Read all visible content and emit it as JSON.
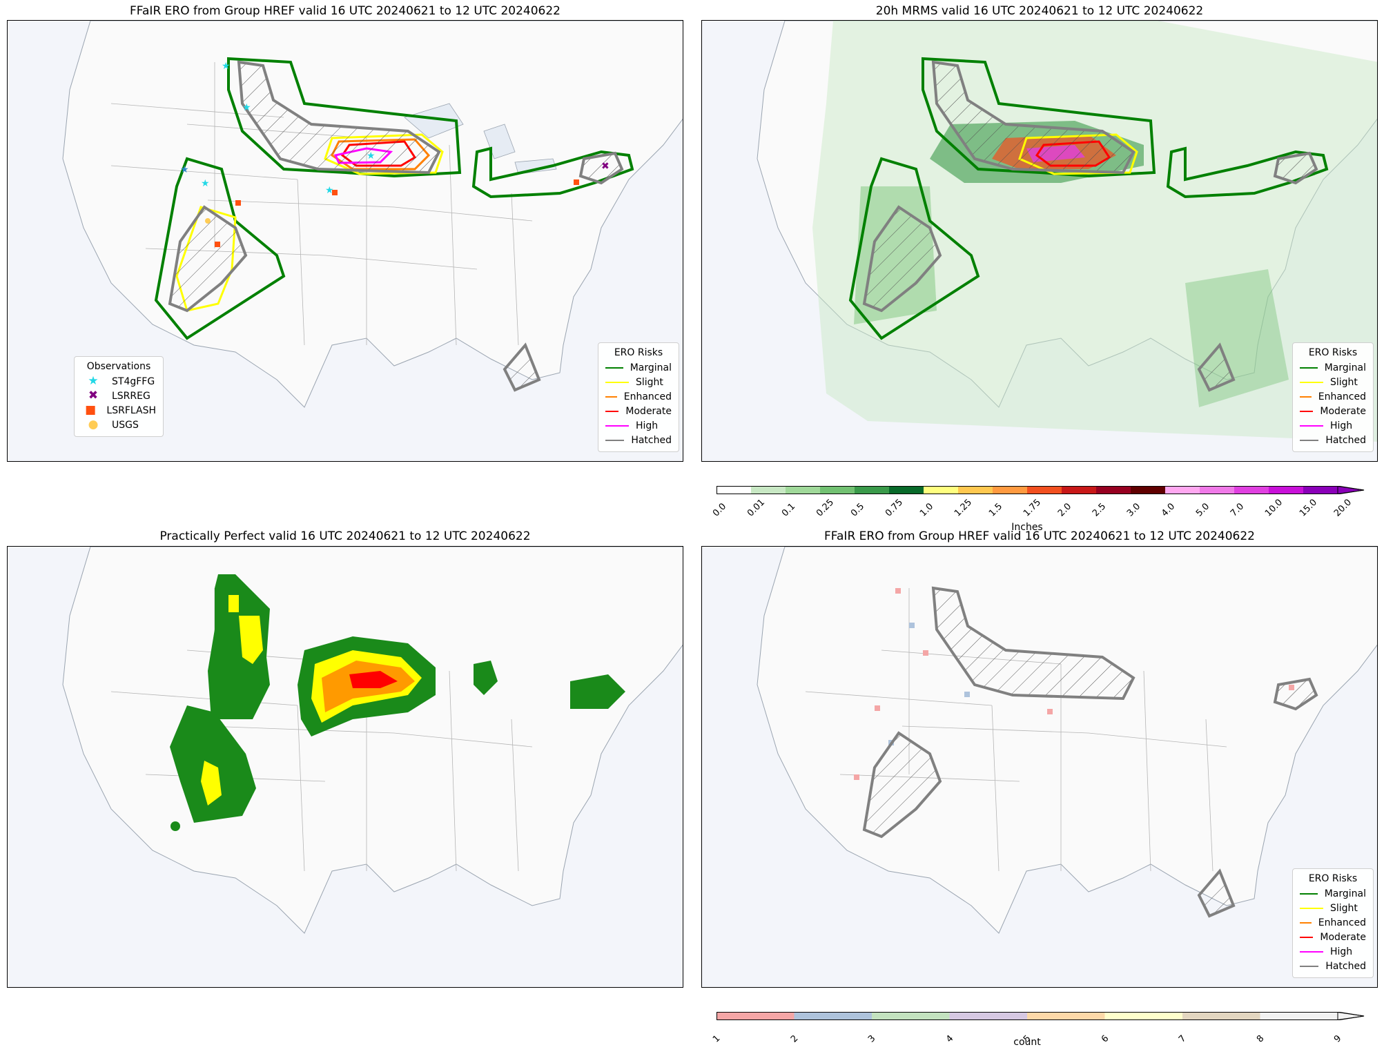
{
  "panels": [
    {
      "title": "FFaIR ERO from Group HREF valid 16 UTC 20240621 to 12 UTC 20240622"
    },
    {
      "title": "20h MRMS valid 16 UTC 20240621 to 12 UTC 20240622"
    },
    {
      "title": "Practically Perfect valid 16 UTC 20240621 to 12 UTC 20240622"
    },
    {
      "title": "FFaIR ERO from Group HREF valid 16 UTC 20240621 to 12 UTC 20240622"
    }
  ],
  "ero_legend": {
    "title": "ERO Risks",
    "items": [
      {
        "label": "Marginal",
        "color": "#008000"
      },
      {
        "label": "Slight",
        "color": "#ffff00"
      },
      {
        "label": "Enhanced",
        "color": "#ff8000"
      },
      {
        "label": "Moderate",
        "color": "#ff0000"
      },
      {
        "label": "High",
        "color": "#ff00ff"
      },
      {
        "label": "Hatched",
        "color": "#808080"
      }
    ]
  },
  "obs_legend": {
    "title": "Observations",
    "items": [
      {
        "label": "ST4gFFG",
        "color": "#22d8e6",
        "icon": "star-icon"
      },
      {
        "label": "LSRREG",
        "color": "#800080",
        "icon": "x-icon"
      },
      {
        "label": "LSRFLASH",
        "color": "#ff5010",
        "icon": "square-icon"
      },
      {
        "label": "USGS",
        "color": "#ffcc55",
        "icon": "circle-icon"
      }
    ]
  },
  "mrms_colorbar": {
    "label": "Inches",
    "ticks": [
      "0.0",
      "0.01",
      "0.1",
      "0.25",
      "0.5",
      "0.75",
      "1.0",
      "1.25",
      "1.5",
      "1.75",
      "2.0",
      "2.5",
      "3.0",
      "4.0",
      "5.0",
      "7.0",
      "10.0",
      "15.0",
      "20.0"
    ],
    "colors": [
      "#ffffff",
      "#c8e8c4",
      "#a0d99a",
      "#72c172",
      "#3a9a4a",
      "#086a2a",
      "#ffff80",
      "#ffc850",
      "#ff9a40",
      "#f25020",
      "#c81818",
      "#960020",
      "#600000",
      "#ffa8f0",
      "#f07ae8",
      "#e040e0",
      "#c810d8",
      "#8a00b8"
    ]
  },
  "count_colorbar": {
    "label": "count",
    "ticks": [
      "1",
      "2",
      "3",
      "4",
      "5",
      "6",
      "7",
      "8",
      "9"
    ],
    "colors": [
      "#f4a6a6",
      "#aec3dc",
      "#c3e2bf",
      "#d6c8e2",
      "#fcd8a8",
      "#ffffcc",
      "#e3d6c0",
      "#f2f2f2"
    ]
  }
}
